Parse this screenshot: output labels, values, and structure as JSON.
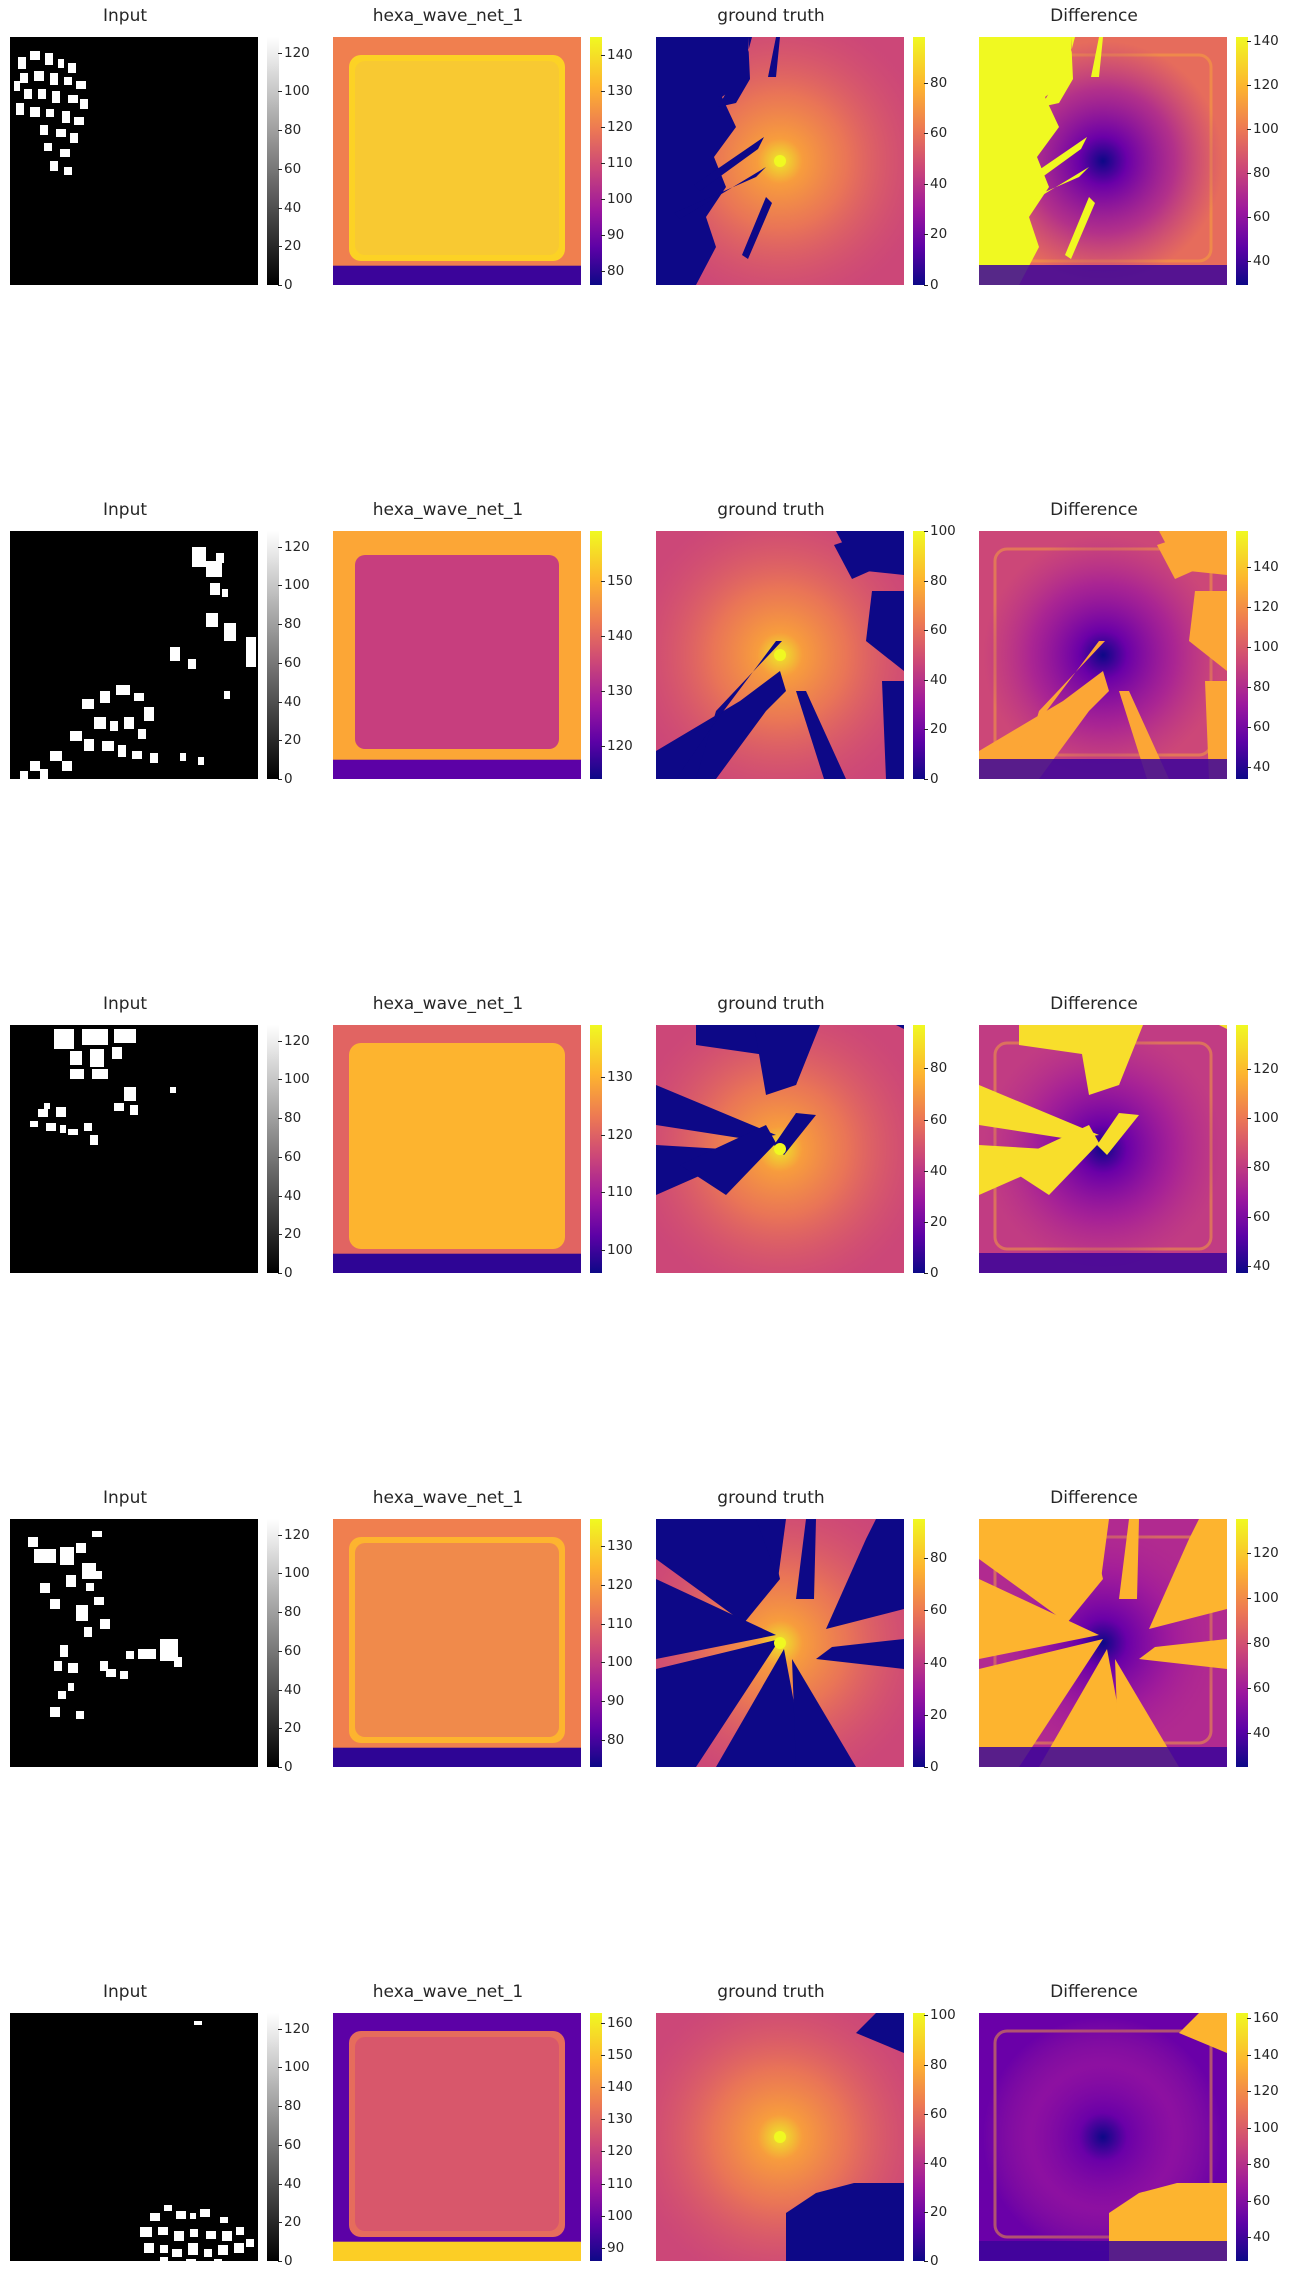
{
  "chart_data": {
    "type": "heatmap",
    "layout": {
      "rows": 5,
      "columns": 4
    },
    "colormaps": {
      "Input": "gray",
      "hexa_wave_net_1": "plasma",
      "ground truth": "plasma",
      "Difference": "plasma"
    },
    "rows": [
      {
        "panels": [
          {
            "title": "Input",
            "ticks": [
              "0",
              "20",
              "40",
              "60",
              "80",
              "100",
              "120"
            ],
            "range": [
              0,
              128
            ]
          },
          {
            "title": "hexa_wave_net_1",
            "ticks": [
              "80",
              "90",
              "100",
              "110",
              "120",
              "130",
              "140"
            ],
            "range": [
              76,
              145
            ]
          },
          {
            "title": "ground truth",
            "ticks": [
              "0",
              "20",
              "40",
              "60",
              "80"
            ],
            "range": [
              0,
              98
            ]
          },
          {
            "title": "Difference",
            "ticks": [
              "40",
              "60",
              "80",
              "100",
              "120",
              "140"
            ],
            "range": [
              29,
              142
            ]
          }
        ]
      },
      {
        "panels": [
          {
            "title": "Input",
            "ticks": [
              "0",
              "20",
              "40",
              "60",
              "80",
              "100",
              "120"
            ],
            "range": [
              0,
              128
            ]
          },
          {
            "title": "hexa_wave_net_1",
            "ticks": [
              "120",
              "130",
              "140",
              "150"
            ],
            "range": [
              114,
              159
            ]
          },
          {
            "title": "ground truth",
            "ticks": [
              "0",
              "20",
              "40",
              "60",
              "80",
              "100"
            ],
            "range": [
              0,
              100
            ]
          },
          {
            "title": "Difference",
            "ticks": [
              "40",
              "60",
              "80",
              "100",
              "120",
              "140"
            ],
            "range": [
              34,
              158
            ]
          }
        ]
      },
      {
        "panels": [
          {
            "title": "Input",
            "ticks": [
              "0",
              "20",
              "40",
              "60",
              "80",
              "100",
              "120"
            ],
            "range": [
              0,
              128
            ]
          },
          {
            "title": "hexa_wave_net_1",
            "ticks": [
              "100",
              "110",
              "120",
              "130"
            ],
            "range": [
              96,
              139
            ]
          },
          {
            "title": "ground truth",
            "ticks": [
              "0",
              "20",
              "40",
              "60",
              "80"
            ],
            "range": [
              0,
              97
            ]
          },
          {
            "title": "Difference",
            "ticks": [
              "40",
              "60",
              "80",
              "100",
              "120"
            ],
            "range": [
              37,
              138
            ]
          }
        ]
      },
      {
        "panels": [
          {
            "title": "Input",
            "ticks": [
              "0",
              "20",
              "40",
              "60",
              "80",
              "100",
              "120"
            ],
            "range": [
              0,
              128
            ]
          },
          {
            "title": "hexa_wave_net_1",
            "ticks": [
              "80",
              "90",
              "100",
              "110",
              "120",
              "130"
            ],
            "range": [
              73,
              137
            ]
          },
          {
            "title": "ground truth",
            "ticks": [
              "0",
              "20",
              "40",
              "60",
              "80"
            ],
            "range": [
              0,
              95
            ]
          },
          {
            "title": "Difference",
            "ticks": [
              "40",
              "60",
              "80",
              "100",
              "120"
            ],
            "range": [
              25,
              135
            ]
          }
        ]
      },
      {
        "panels": [
          {
            "title": "Input",
            "ticks": [
              "0",
              "20",
              "40",
              "60",
              "80",
              "100",
              "120"
            ],
            "range": [
              0,
              128
            ]
          },
          {
            "title": "hexa_wave_net_1",
            "ticks": [
              "90",
              "100",
              "110",
              "120",
              "130",
              "140",
              "150",
              "160"
            ],
            "range": [
              86,
              163
            ]
          },
          {
            "title": "ground truth",
            "ticks": [
              "0",
              "20",
              "40",
              "60",
              "80",
              "100"
            ],
            "range": [
              0,
              101
            ]
          },
          {
            "title": "Difference",
            "ticks": [
              "40",
              "60",
              "80",
              "100",
              "120",
              "140",
              "160"
            ],
            "range": [
              27,
              163
            ]
          }
        ]
      }
    ]
  }
}
